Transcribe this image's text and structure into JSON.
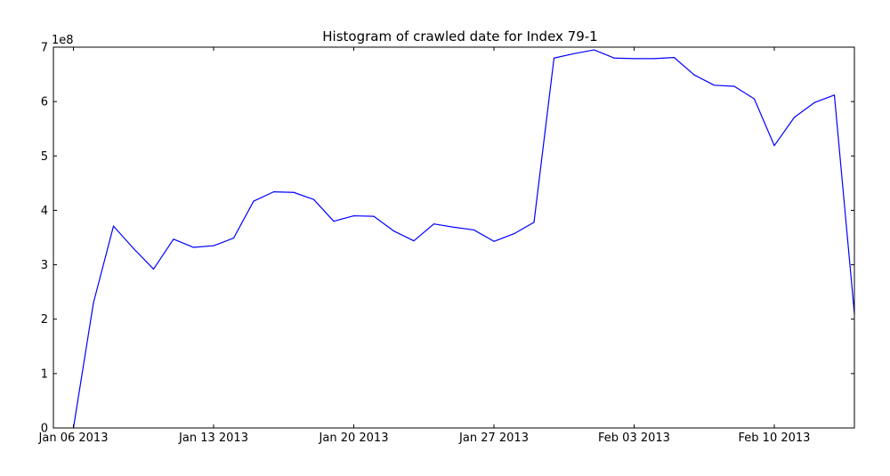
{
  "chart_data": {
    "type": "line",
    "title": "Histogram of crawled date for Index 79-1",
    "xlabel": "",
    "ylabel": "",
    "y_offset_label": "1e8",
    "ylim": [
      0,
      7
    ],
    "y_unit_multiplier": 100000000,
    "yticks": [
      "0",
      "1",
      "2",
      "3",
      "4",
      "5",
      "6",
      "7"
    ],
    "xlim": [
      "2013-01-05",
      "2013-02-14"
    ],
    "xticks": [
      {
        "date": "2013-01-06",
        "label": "Jan 06 2013"
      },
      {
        "date": "2013-01-13",
        "label": "Jan 13 2013"
      },
      {
        "date": "2013-01-20",
        "label": "Jan 20 2013"
      },
      {
        "date": "2013-01-27",
        "label": "Jan 27 2013"
      },
      {
        "date": "2013-02-03",
        "label": "Feb 03 2013"
      },
      {
        "date": "2013-02-10",
        "label": "Feb 10 2013"
      }
    ],
    "grid": false,
    "series": [
      {
        "color": "#0000ff",
        "x": [
          "2013-01-06",
          "2013-01-07",
          "2013-01-08",
          "2013-01-09",
          "2013-01-10",
          "2013-01-11",
          "2013-01-12",
          "2013-01-13",
          "2013-01-14",
          "2013-01-15",
          "2013-01-16",
          "2013-01-17",
          "2013-01-18",
          "2013-01-19",
          "2013-01-20",
          "2013-01-21",
          "2013-01-22",
          "2013-01-23",
          "2013-01-24",
          "2013-01-25",
          "2013-01-26",
          "2013-01-27",
          "2013-01-28",
          "2013-01-29",
          "2013-01-30",
          "2013-01-31",
          "2013-02-01",
          "2013-02-02",
          "2013-02-03",
          "2013-02-04",
          "2013-02-05",
          "2013-02-06",
          "2013-02-07",
          "2013-02-08",
          "2013-02-09",
          "2013-02-10",
          "2013-02-11",
          "2013-02-12",
          "2013-02-13",
          "2013-02-14"
        ],
        "values": [
          0.0,
          2.3,
          3.71,
          3.3,
          2.92,
          3.47,
          3.32,
          3.35,
          3.49,
          4.17,
          4.34,
          4.33,
          4.2,
          3.8,
          3.9,
          3.89,
          3.62,
          3.44,
          3.75,
          3.69,
          3.64,
          3.43,
          3.57,
          3.78,
          6.8,
          6.88,
          6.95,
          6.8,
          6.79,
          6.79,
          6.81,
          6.49,
          6.3,
          6.28,
          6.05,
          5.19,
          5.71,
          5.98,
          6.12,
          2.1
        ]
      }
    ]
  }
}
